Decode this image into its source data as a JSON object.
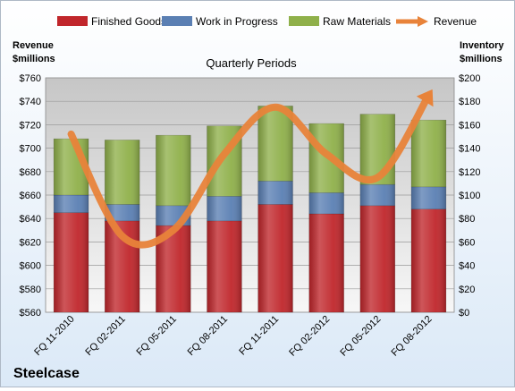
{
  "company": "Steelcase",
  "chart_data": {
    "type": "bar",
    "stacked": true,
    "title": "Quarterly Periods",
    "categories": [
      "FQ 11-2010",
      "FQ 02-2011",
      "FQ 05-2011",
      "FQ 08-2011",
      "FQ 11-2011",
      "FQ 02-2012",
      "FQ 05-2012",
      "FQ 08-2012"
    ],
    "left_axis": {
      "label_line1": "Revenue",
      "label_line2": "$millions",
      "range": [
        560,
        760
      ],
      "step": 20,
      "tick_prefix": "$"
    },
    "right_axis": {
      "label_line1": "Inventory",
      "label_line2": "$millions",
      "range": [
        0,
        200
      ],
      "step": 20,
      "tick_prefix": "$"
    },
    "series": [
      {
        "name": "Finished Goods",
        "axis": "right",
        "color": "#c0262b",
        "values": [
          85,
          78,
          74,
          78,
          92,
          84,
          91,
          88
        ]
      },
      {
        "name": "Work in Progress",
        "axis": "right",
        "color": "#5a7fb3",
        "values": [
          15,
          14,
          17,
          21,
          20,
          18,
          18,
          19
        ]
      },
      {
        "name": "Raw Materials",
        "axis": "right",
        "color": "#8fb04a",
        "values": [
          48,
          55,
          60,
          60,
          64,
          59,
          60,
          57
        ]
      },
      {
        "name": "Revenue",
        "axis": "left",
        "type": "line",
        "color": "#e8833a",
        "values": [
          712,
          625,
          630,
          695,
          735,
          695,
          675,
          745
        ]
      }
    ],
    "grid": true,
    "legend_position": "top"
  }
}
